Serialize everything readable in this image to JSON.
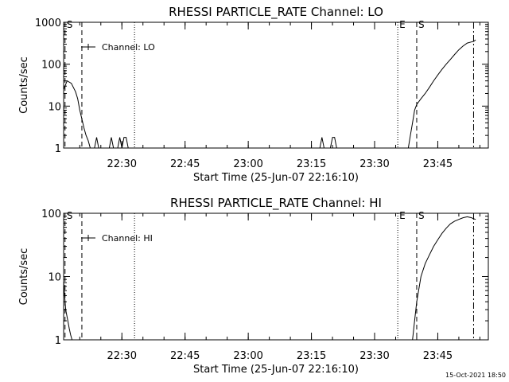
{
  "footer_timestamp": "15-Oct-2021 18:50",
  "chart_data": [
    {
      "type": "line",
      "title": "RHESSI PARTICLE_RATE Channel: LO",
      "xlabel": "Start Time (25-Jun-07 22:16:10)",
      "ylabel": "Counts/sec",
      "y_scale": "log",
      "ylim": [
        1,
        1000
      ],
      "y_ticks": [
        {
          "value": 1,
          "label": "1"
        },
        {
          "value": 10,
          "label": "10"
        },
        {
          "value": 100,
          "label": "100"
        },
        {
          "value": 1000,
          "label": "1000"
        }
      ],
      "xlim": [
        "22:16:10",
        "23:57:00"
      ],
      "x_ticks": [
        {
          "value": "22:30",
          "label": "22:30"
        },
        {
          "value": "22:45",
          "label": "22:45"
        },
        {
          "value": "23:00",
          "label": "23:00"
        },
        {
          "value": "23:15",
          "label": "23:15"
        },
        {
          "value": "23:30",
          "label": "23:30"
        },
        {
          "value": "23:45",
          "label": "23:45"
        }
      ],
      "legend": {
        "label": "Channel: LO",
        "placement": "top-left"
      },
      "markers": [
        {
          "time": "22:16:30",
          "label": "S",
          "style": "dashed"
        },
        {
          "time": "22:20:30",
          "label": "",
          "style": "dashed"
        },
        {
          "time": "22:33:00",
          "label": "",
          "style": "dotted"
        },
        {
          "time": "23:35:30",
          "label": "E",
          "style": "dotted"
        },
        {
          "time": "23:40:00",
          "label": "S",
          "style": "dashed"
        },
        {
          "time": "23:53:30",
          "label": "",
          "style": "dash-dot"
        }
      ],
      "series": [
        {
          "x": [
            "22:16:10",
            "22:17:00",
            "22:18:00",
            "22:19:00",
            "22:19:30",
            "22:20:00",
            "22:20:30",
            "22:21:00",
            "22:21:30",
            "22:22:00",
            "22:22:30",
            "22:23:00",
            "22:23:30",
            "22:24:00",
            "22:24:30",
            "22:25:00",
            "22:25:30",
            "22:27:00",
            "22:27:30",
            "22:28:00",
            "22:28:30",
            "22:29:00",
            "22:29:30",
            "22:30:00",
            "22:30:30",
            "22:31:00",
            "22:31:30",
            "22:32:00",
            "23:17:00",
            "23:17:30",
            "23:18:00",
            "23:19:30",
            "23:20:00",
            "23:20:30",
            "23:21:00",
            "23:21:30",
            "23:38:00",
            "23:38:30",
            "23:39:00",
            "23:39:30",
            "23:40:00",
            "23:41:00",
            "23:42:00",
            "23:43:00",
            "23:44:00",
            "23:45:00",
            "23:46:00",
            "23:47:00",
            "23:48:00",
            "23:49:00",
            "23:50:00",
            "23:51:00",
            "23:52:00",
            "23:53:00",
            "23:53:30",
            "23:54:00"
          ],
          "y": [
            25,
            40,
            35,
            22,
            15,
            8,
            5,
            3,
            2,
            1.5,
            1,
            1,
            1,
            1.8,
            1,
            1,
            1,
            1,
            1.8,
            1,
            1,
            1,
            1.8,
            1,
            1.8,
            1.8,
            1,
            1,
            1,
            1.8,
            1,
            1,
            1.8,
            1.8,
            1,
            1,
            1,
            2,
            4,
            8,
            11,
            15,
            20,
            28,
            40,
            55,
            75,
            100,
            130,
            170,
            220,
            270,
            320,
            340,
            350,
            380
          ]
        }
      ]
    },
    {
      "type": "line",
      "title": "RHESSI PARTICLE_RATE Channel: HI",
      "xlabel": "Start Time (25-Jun-07 22:16:10)",
      "ylabel": "Counts/sec",
      "y_scale": "log",
      "ylim": [
        1,
        100
      ],
      "y_ticks": [
        {
          "value": 1,
          "label": "1"
        },
        {
          "value": 10,
          "label": "10"
        },
        {
          "value": 100,
          "label": "100"
        }
      ],
      "xlim": [
        "22:16:10",
        "23:57:00"
      ],
      "x_ticks": [
        {
          "value": "22:30",
          "label": "22:30"
        },
        {
          "value": "22:45",
          "label": "22:45"
        },
        {
          "value": "23:00",
          "label": "23:00"
        },
        {
          "value": "23:15",
          "label": "23:15"
        },
        {
          "value": "23:30",
          "label": "23:30"
        },
        {
          "value": "23:45",
          "label": "23:45"
        }
      ],
      "legend": {
        "label": "Channel: HI",
        "placement": "top-left"
      },
      "markers": [
        {
          "time": "22:16:30",
          "label": "S",
          "style": "dashed"
        },
        {
          "time": "22:20:30",
          "label": "",
          "style": "dashed"
        },
        {
          "time": "22:33:00",
          "label": "",
          "style": "dotted"
        },
        {
          "time": "23:35:30",
          "label": "E",
          "style": "dotted"
        },
        {
          "time": "23:40:00",
          "label": "S",
          "style": "dashed"
        },
        {
          "time": "23:53:30",
          "label": "",
          "style": "dash-dot"
        }
      ],
      "series": [
        {
          "x": [
            "22:16:10",
            "22:16:40",
            "22:17:10",
            "22:17:30",
            "22:17:50",
            "22:18:10",
            "23:39:00",
            "23:39:30",
            "23:40:00",
            "23:41:00",
            "23:42:00",
            "23:43:00",
            "23:44:00",
            "23:45:00",
            "23:46:00",
            "23:47:00",
            "23:48:00",
            "23:49:00",
            "23:50:00",
            "23:51:00",
            "23:52:00",
            "23:53:00",
            "23:53:30",
            "23:54:00"
          ],
          "y": [
            8,
            3,
            2,
            1.5,
            1.2,
            1,
            1,
            2,
            4,
            10,
            16,
            22,
            30,
            38,
            48,
            58,
            68,
            75,
            80,
            85,
            88,
            85,
            82,
            80
          ]
        }
      ]
    }
  ]
}
